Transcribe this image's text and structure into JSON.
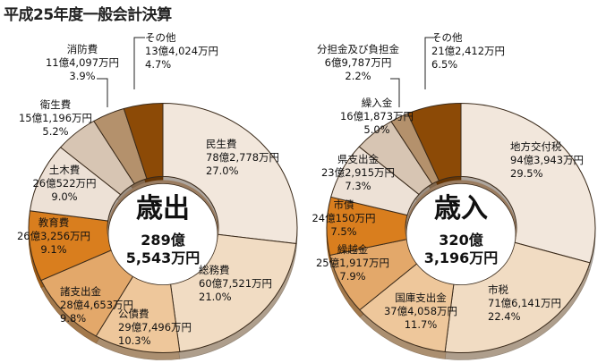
{
  "title": "平成25年度一般会計決算",
  "chart_data": [
    {
      "type": "pie",
      "center_label": "歳出",
      "total_lines": [
        "289億",
        "5,543万円"
      ],
      "slices": [
        {
          "name": "民生費",
          "amount": "78億2,778万円",
          "percent": "27.0%",
          "value": 27.0,
          "color": "#f2e7dc"
        },
        {
          "name": "総務費",
          "amount": "60億7,521万円",
          "percent": "21.0%",
          "value": 21.0,
          "color": "#f1dcc3"
        },
        {
          "name": "公債費",
          "amount": "29億7,496万円",
          "percent": "10.3%",
          "value": 10.3,
          "color": "#eec79b"
        },
        {
          "name": "諸支出金",
          "amount": "28億4,653万円",
          "percent": "9.8%",
          "value": 9.8,
          "color": "#e3a86a"
        },
        {
          "name": "教育費",
          "amount": "26億3,256万円",
          "percent": "9.1%",
          "value": 9.1,
          "color": "#d97e1e"
        },
        {
          "name": "土木費",
          "amount": "26億522万円",
          "percent": "9.0%",
          "value": 9.0,
          "color": "#ede1d6"
        },
        {
          "name": "衛生費",
          "amount": "15億1,196万円",
          "percent": "5.2%",
          "value": 5.2,
          "color": "#d7c5b3"
        },
        {
          "name": "消防費",
          "amount": "11億4,097万円",
          "percent": "3.9%",
          "value": 3.9,
          "color": "#b4916c"
        },
        {
          "name": "その他",
          "amount": "13億4,024万円",
          "percent": "4.7%",
          "value": 4.7,
          "color": "#8c4a06"
        }
      ]
    },
    {
      "type": "pie",
      "center_label": "歳入",
      "total_lines": [
        "320億",
        "3,196万円"
      ],
      "slices": [
        {
          "name": "地方交付税",
          "amount": "94億3,943万円",
          "percent": "29.5%",
          "value": 29.5,
          "color": "#f2e7dc"
        },
        {
          "name": "市税",
          "amount": "71億6,141万円",
          "percent": "22.4%",
          "value": 22.4,
          "color": "#f1dcc3"
        },
        {
          "name": "国庫支出金",
          "amount": "37億4,058万円",
          "percent": "11.7%",
          "value": 11.7,
          "color": "#eec79b"
        },
        {
          "name": "繰越金",
          "amount": "25億1,917万円",
          "percent": "7.9%",
          "value": 7.9,
          "color": "#e3a86a"
        },
        {
          "name": "市債",
          "amount": "24億150万円",
          "percent": "7.5%",
          "value": 7.5,
          "color": "#d97e1e"
        },
        {
          "name": "県支出金",
          "amount": "23億2,915万円",
          "percent": "7.3%",
          "value": 7.3,
          "color": "#ede1d6"
        },
        {
          "name": "繰入金",
          "amount": "16億1,873万円",
          "percent": "5.0%",
          "value": 5.0,
          "color": "#d7c5b3"
        },
        {
          "name": "分担金及び負担金",
          "amount": "6億9,787万円",
          "percent": "2.2%",
          "value": 2.2,
          "color": "#b4916c"
        },
        {
          "name": "その他",
          "amount": "21億2,412万円",
          "percent": "6.5%",
          "value": 6.5,
          "color": "#8c4a06"
        }
      ]
    }
  ]
}
